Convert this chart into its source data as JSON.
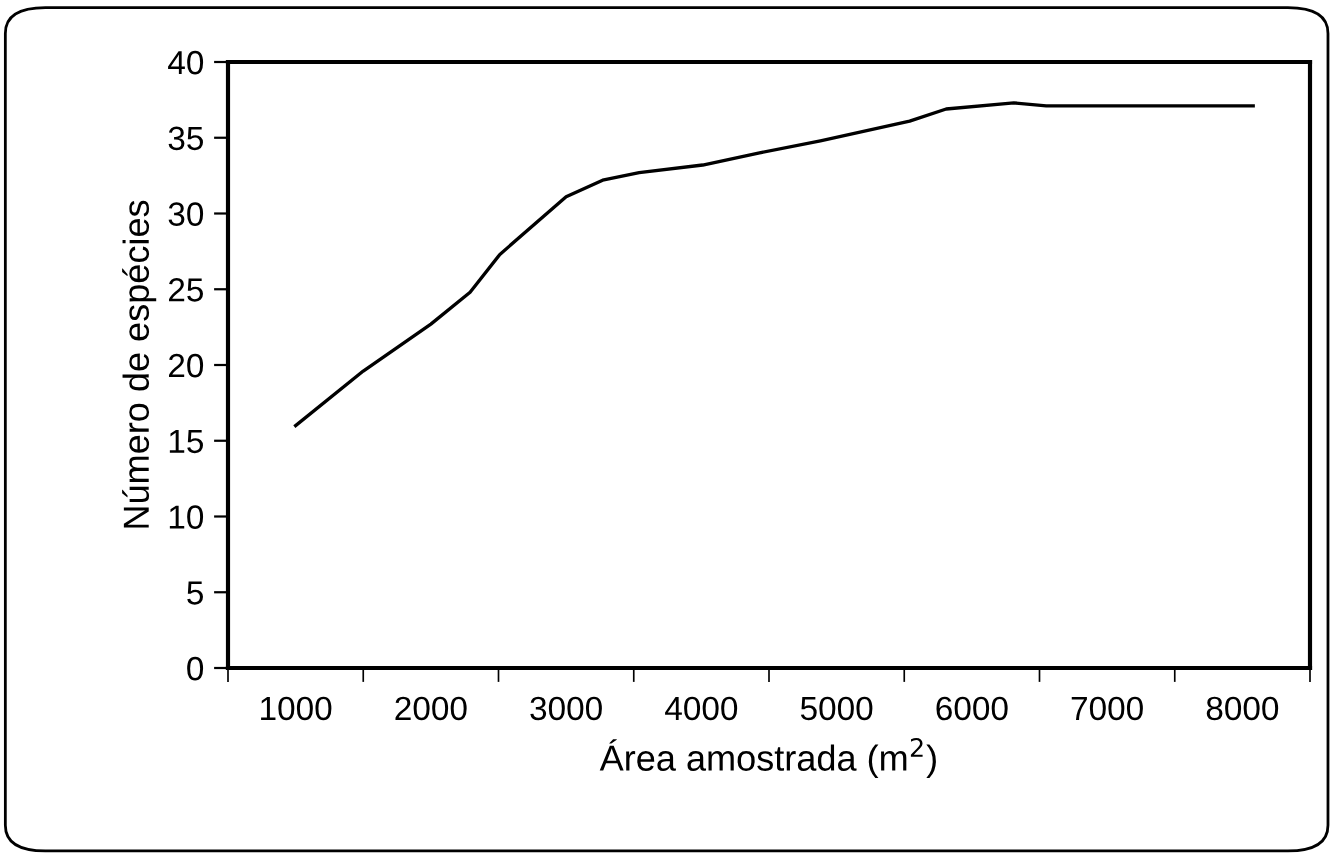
{
  "chart_data": {
    "type": "line",
    "xlabel": "Área amostrada (m$^{2}$)",
    "ylabel": "Número de espécies",
    "x": [
      1000,
      1500,
      2000,
      2290,
      2510,
      3000,
      3270,
      3540,
      4010,
      4430,
      4880,
      5540,
      5810,
      6310,
      6550,
      8080
    ],
    "series": [
      {
        "color": "#000000",
        "values": [
          16.0,
          19.6,
          22.7,
          24.8,
          27.3,
          31.1,
          32.2,
          32.7,
          33.2,
          34.0,
          34.8,
          36.1,
          36.9,
          37.3,
          37.1,
          37.1
        ]
      }
    ],
    "xlim": [
      500,
      8500
    ],
    "xticks": [
      {
        "value": 500,
        "label": null
      },
      {
        "value": 1000,
        "label": "1000"
      },
      {
        "value": 1500,
        "label": null
      },
      {
        "value": 2000,
        "label": "2000"
      },
      {
        "value": 2500,
        "label": null
      },
      {
        "value": 3000,
        "label": "3000"
      },
      {
        "value": 3500,
        "label": null
      },
      {
        "value": 4000,
        "label": "4000"
      },
      {
        "value": 4500,
        "label": null
      },
      {
        "value": 5000,
        "label": "5000"
      },
      {
        "value": 5500,
        "label": null
      },
      {
        "value": 6000,
        "label": "6000"
      },
      {
        "value": 6500,
        "label": null
      },
      {
        "value": 7000,
        "label": "7000"
      },
      {
        "value": 7500,
        "label": null
      },
      {
        "value": 8000,
        "label": "8000"
      },
      {
        "value": 8500,
        "label": null
      }
    ],
    "ylim": [
      0,
      40
    ],
    "yticks": [
      0,
      5,
      10,
      15,
      20,
      25,
      30,
      35,
      40
    ],
    "grid": false,
    "legend": false,
    "marker": "none",
    "line_style": "solid"
  }
}
